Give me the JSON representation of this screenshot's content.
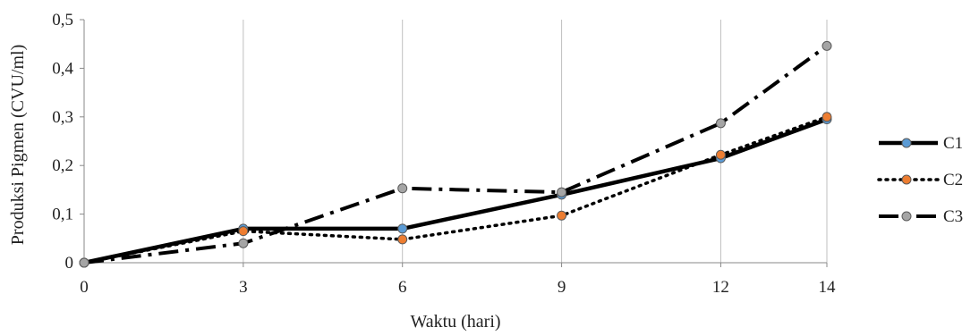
{
  "chart_data": {
    "type": "line",
    "xlabel": "Waktu (hari)",
    "ylabel": "Produksi Pigmen (CVU/ml)",
    "x": [
      0,
      3,
      6,
      9,
      12,
      14
    ],
    "x_tick_labels": [
      "0",
      "3",
      "6",
      "9",
      "12",
      "14"
    ],
    "y_tick_labels": [
      "0",
      "0,1",
      "0,2",
      "0,3",
      "0,4",
      "0,5"
    ],
    "ylim": [
      0,
      0.5
    ],
    "grid": "vertical lines at x ticks",
    "legend": "right",
    "series": [
      {
        "name": "C1",
        "values": [
          0.0,
          0.07,
          0.07,
          0.14,
          0.215,
          0.295
        ],
        "line_style": "solid",
        "line_color": "#000000",
        "marker_color": "#5b9bd5"
      },
      {
        "name": "C2",
        "values": [
          0.0,
          0.065,
          0.048,
          0.097,
          0.222,
          0.3
        ],
        "line_style": "dotted",
        "line_color": "#000000",
        "marker_color": "#ed7d31"
      },
      {
        "name": "C3",
        "values": [
          0.0,
          0.04,
          0.153,
          0.145,
          0.287,
          0.446
        ],
        "line_style": "dash-dot",
        "line_color": "#000000",
        "marker_color": "#a5a5a5"
      }
    ]
  }
}
